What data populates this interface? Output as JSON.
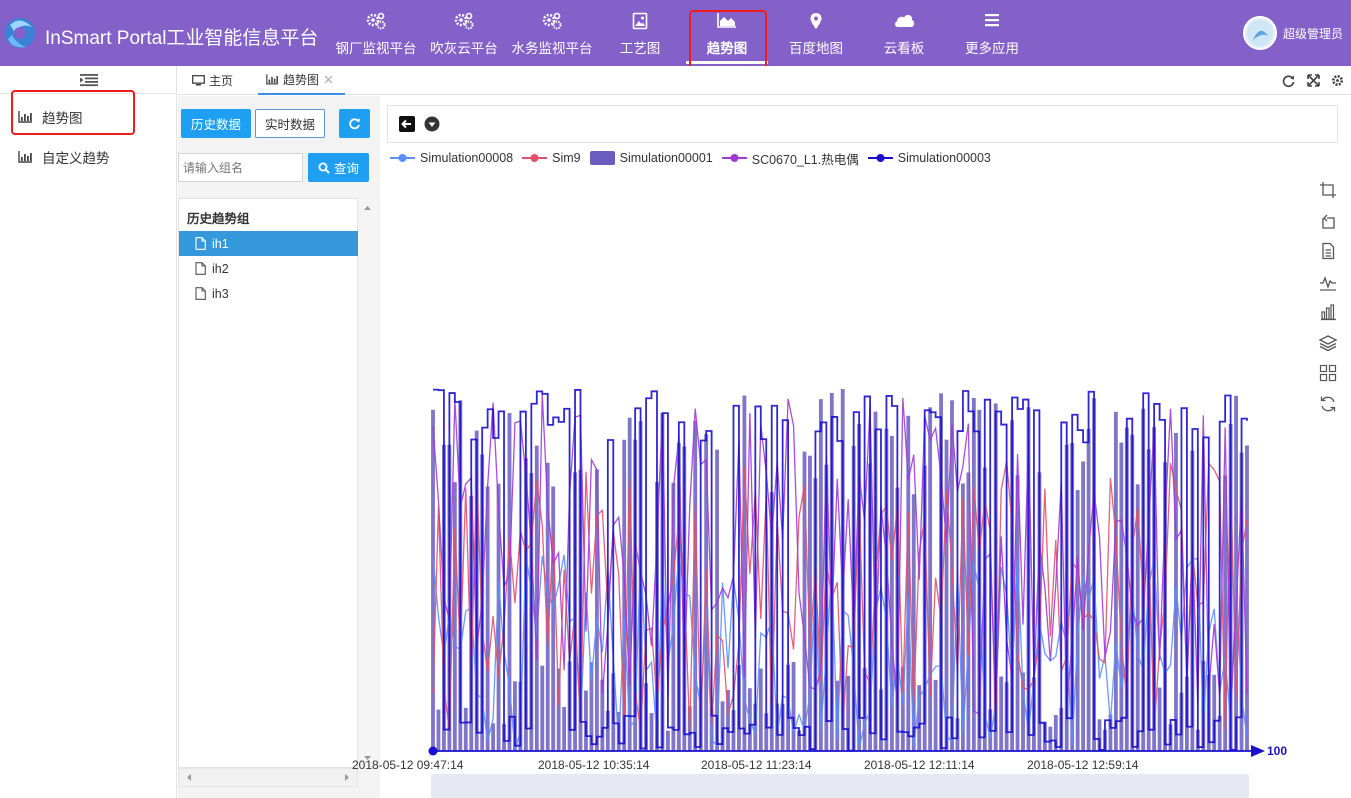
{
  "app": {
    "title": "InSmart Portal工业智能信息平台",
    "user": "超级管理员"
  },
  "topnav": [
    {
      "label": "钢厂监视平台",
      "icon": "gears-icon"
    },
    {
      "label": "吹灰云平台",
      "icon": "gears-icon"
    },
    {
      "label": "水务监视平台",
      "icon": "gears-icon"
    },
    {
      "label": "工艺图",
      "icon": "picture-icon"
    },
    {
      "label": "趋势图",
      "icon": "area-chart-icon",
      "active": true
    },
    {
      "label": "百度地图",
      "icon": "map-marker-icon"
    },
    {
      "label": "云看板",
      "icon": "cloud-icon"
    },
    {
      "label": "更多应用",
      "icon": "menu-icon"
    }
  ],
  "sidebar": {
    "items": [
      {
        "label": "趋势图",
        "icon": "bar-chart-icon",
        "active": true
      },
      {
        "label": "自定义趋势",
        "icon": "bar-chart-icon"
      }
    ]
  },
  "tabs": [
    {
      "label": "主页",
      "icon": "monitor-icon"
    },
    {
      "label": "趋势图",
      "icon": "bar-chart-icon",
      "closable": true,
      "active": true
    }
  ],
  "panel": {
    "history_button": "历史数据",
    "realtime_button": "实时数据",
    "search_placeholder": "请输入组名",
    "query_button": "查询",
    "tree_header": "历史趋势组",
    "groups": [
      "ih1",
      "ih2",
      "ih3"
    ],
    "selected_group": "ih1"
  },
  "chart_data": {
    "type": "line",
    "x_ticks": [
      "2018-05-12 09:47:14",
      "2018-05-12 10:35:14",
      "2018-05-12 11:23:14",
      "2018-05-12 12:11:14",
      "2018-05-12 12:59:14"
    ],
    "x_start_label": "2018-05-12 09:47:14",
    "axis_end_label": "100",
    "grid": false,
    "legend_position": "top-left",
    "series": [
      {
        "name": "Simulation00008",
        "color": "#5b8ff9",
        "style": "line"
      },
      {
        "name": "Sim9",
        "color": "#e0526a",
        "style": "line"
      },
      {
        "name": "Simulation00001",
        "color": "#6b5dbf",
        "style": "bar"
      },
      {
        "name": "SC0670_L1.热电偶",
        "color": "#a03ad6",
        "style": "line"
      },
      {
        "name": "Simulation00003",
        "color": "#1a0fcc",
        "style": "step"
      }
    ],
    "points_per_series": 150,
    "value_range": [
      0,
      100
    ]
  },
  "colors": {
    "topbar": "#8461c9",
    "primary_button": "#1e9ff2",
    "selected_row": "#3498db",
    "highlight_box": "#ef1c1c"
  }
}
